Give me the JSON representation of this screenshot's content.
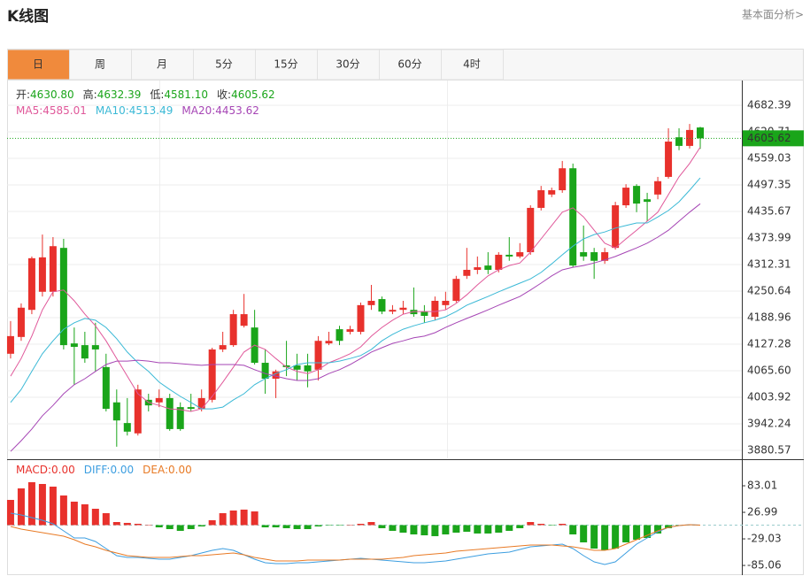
{
  "header": {
    "title": "K线图",
    "link": "基本面分析>"
  },
  "tabs": [
    {
      "label": "日",
      "active": true
    },
    {
      "label": "周",
      "active": false
    },
    {
      "label": "月",
      "active": false
    },
    {
      "label": "5分",
      "active": false
    },
    {
      "label": "15分",
      "active": false
    },
    {
      "label": "30分",
      "active": false
    },
    {
      "label": "60分",
      "active": false
    },
    {
      "label": "4时",
      "active": false
    }
  ],
  "chart_data": [
    {
      "type": "candlestick",
      "info": [
        {
          "label": "开:",
          "value": "4630.80"
        },
        {
          "label": "高:",
          "value": "4632.39"
        },
        {
          "label": "低:",
          "value": "4581.10"
        },
        {
          "label": "收:",
          "value": "4605.62"
        }
      ],
      "info_color": "#1aa51a",
      "up_color": "#e8312c",
      "down_color": "#1aa51a",
      "open": [
        4105,
        4144,
        4207,
        4249,
        4249,
        4351,
        4129,
        4125,
        4125,
        4074,
        3992,
        3944,
        3920,
        3998,
        3992,
        4002,
        3981,
        3981,
        3977,
        3998,
        4115,
        4125,
        4170,
        4166,
        4084,
        4047,
        4078,
        4078,
        4078,
        4068,
        4129,
        4162,
        4156,
        4156,
        4218,
        4232,
        4203,
        4207,
        4207,
        4203,
        4191,
        4218,
        4228,
        4286,
        4300,
        4310,
        4300,
        4335,
        4331,
        4341,
        4444,
        4475,
        4485,
        4536,
        4341,
        4341,
        4321,
        4351,
        4450,
        4495,
        4464,
        4475,
        4516,
        4608,
        4588,
        4630.8
      ],
      "high": [
        4181,
        4222,
        4331,
        4382,
        4376,
        4372,
        4166,
        4156,
        4177,
        4105,
        4022,
        4002,
        4033,
        4012,
        4022,
        4012,
        3992,
        4012,
        4022,
        4119,
        4156,
        4207,
        4244,
        4207,
        4115,
        4068,
        4135,
        4105,
        4105,
        4146,
        4156,
        4170,
        4170,
        4224,
        4265,
        4238,
        4218,
        4228,
        4259,
        4218,
        4238,
        4249,
        4286,
        4351,
        4331,
        4341,
        4341,
        4376,
        4362,
        4450,
        4495,
        4491,
        4553,
        4547,
        4403,
        4351,
        4351,
        4458,
        4499,
        4499,
        4479,
        4516,
        4629,
        4629,
        4639,
        4632.39
      ],
      "low": [
        4094,
        4135,
        4197,
        4238,
        4238,
        4115,
        4033,
        4084,
        4064,
        3971,
        3889,
        3915,
        3915,
        3971,
        3981,
        3926,
        3926,
        3971,
        3971,
        3992,
        4109,
        4121,
        4166,
        4080,
        4012,
        4002,
        4053,
        4043,
        4027,
        4043,
        4125,
        4125,
        4150,
        4150,
        4207,
        4197,
        4197,
        4197,
        4191,
        4177,
        4183,
        4207,
        4224,
        4279,
        4290,
        4290,
        4294,
        4321,
        4327,
        4335,
        4438,
        4469,
        4479,
        4306,
        4321,
        4279,
        4314,
        4347,
        4444,
        4434,
        4413,
        4464,
        4512,
        4578,
        4582,
        4581.1
      ],
      "close": [
        4146,
        4212,
        4327,
        4329,
        4355,
        4125,
        4121,
        4094,
        4115,
        3977,
        3950,
        3924,
        4022,
        3985,
        4002,
        3930,
        3930,
        3977,
        4002,
        4115,
        4125,
        4197,
        4197,
        4084,
        4047,
        4064,
        4074,
        4068,
        4064,
        4135,
        4135,
        4135,
        4162,
        4218,
        4228,
        4203,
        4207,
        4212,
        4197,
        4193,
        4228,
        4228,
        4279,
        4300,
        4306,
        4300,
        4335,
        4331,
        4341,
        4444,
        4485,
        4485,
        4536,
        4310,
        4331,
        4321,
        4341,
        4450,
        4491,
        4454,
        4458,
        4506,
        4598,
        4588,
        4625,
        4605.62
      ],
      "series": [
        {
          "name": "MA5:",
          "legend_value": "4585.01",
          "color": "#e0589a",
          "values": [
            4053,
            4094,
            4146,
            4207,
            4249,
            4253,
            4228,
            4197,
            4170,
            4135,
            4094,
            4053,
            4012,
            3992,
            3985,
            3977,
            3975,
            3971,
            3977,
            4006,
            4039,
            4074,
            4109,
            4125,
            4115,
            4094,
            4074,
            4064,
            4059,
            4068,
            4084,
            4094,
            4105,
            4121,
            4146,
            4166,
            4183,
            4197,
            4203,
            4203,
            4203,
            4207,
            4222,
            4242,
            4265,
            4286,
            4300,
            4310,
            4316,
            4341,
            4372,
            4403,
            4434,
            4444,
            4423,
            4392,
            4362,
            4351,
            4372,
            4392,
            4413,
            4434,
            4475,
            4516,
            4547,
            4585.01
          ]
        },
        {
          "name": "MA10:",
          "legend_value": "4513.49",
          "color": "#3bb9d6",
          "values": [
            3992,
            4022,
            4064,
            4105,
            4135,
            4162,
            4177,
            4187,
            4183,
            4166,
            4140,
            4109,
            4084,
            4064,
            4039,
            4022,
            4006,
            3992,
            3977,
            3977,
            3981,
            3998,
            4012,
            4033,
            4047,
            4059,
            4068,
            4080,
            4084,
            4084,
            4084,
            4088,
            4094,
            4101,
            4115,
            4135,
            4150,
            4162,
            4170,
            4177,
            4183,
            4191,
            4203,
            4218,
            4228,
            4238,
            4249,
            4259,
            4269,
            4279,
            4294,
            4314,
            4335,
            4355,
            4372,
            4382,
            4388,
            4397,
            4403,
            4409,
            4409,
            4423,
            4438,
            4458,
            4485,
            4513.49
          ]
        },
        {
          "name": "MA20:",
          "legend_value": "4453.62",
          "color": "#a646b5",
          "values": [
            3878,
            3903,
            3930,
            3961,
            3985,
            4012,
            4033,
            4047,
            4064,
            4080,
            4088,
            4088,
            4090,
            4088,
            4084,
            4084,
            4082,
            4080,
            4078,
            4080,
            4080,
            4080,
            4078,
            4068,
            4059,
            4053,
            4047,
            4043,
            4043,
            4047,
            4059,
            4068,
            4080,
            4094,
            4109,
            4119,
            4129,
            4135,
            4142,
            4146,
            4154,
            4166,
            4177,
            4187,
            4197,
            4207,
            4218,
            4228,
            4238,
            4253,
            4269,
            4286,
            4300,
            4306,
            4310,
            4316,
            4323,
            4331,
            4341,
            4351,
            4362,
            4376,
            4392,
            4413,
            4434,
            4453.62
          ]
        }
      ],
      "ylim": [
        3862.0,
        4742.0
      ],
      "yticks": [
        4682.39,
        4620.71,
        4559.03,
        4497.35,
        4435.67,
        4373.99,
        4312.31,
        4250.64,
        4188.96,
        4127.28,
        {
          "value": 4065.6,
          "label": "4065.60"
        },
        4003.92,
        3942.24,
        3880.57
      ],
      "grid": true,
      "last_price_color": "#1aa51a"
    },
    {
      "type": "macd",
      "histogram": {
        "name": "MACD:",
        "legend_value": "0.00",
        "up_color": "#e8312c",
        "down_color": "#1aa51a",
        "values": [
          53.2,
          77.5,
          90.5,
          86.8,
          81.2,
          62.5,
          49.5,
          43.9,
          34.5,
          25.2,
          6.5,
          4.7,
          2.8,
          0.9,
          -4.7,
          -8.4,
          -12.1,
          -8.4,
          -2.8,
          10.3,
          25.2,
          30.8,
          32.7,
          28.9,
          -4.7,
          -4.7,
          -6.5,
          -8.4,
          -8.4,
          -2.8,
          -0.9,
          -0.9,
          0.9,
          2.8,
          6.5,
          -6.5,
          -12.1,
          -15.9,
          -19.6,
          -21.5,
          -23.3,
          -19.6,
          -15.9,
          -14.0,
          -17.7,
          -17.7,
          -15.9,
          -12.1,
          -6.5,
          6.5,
          2.8,
          -0.9,
          2.8,
          -19.6,
          -36.4,
          -49.5,
          -53.2,
          -49.5,
          -36.4,
          -30.8,
          -27.1,
          -17.7,
          -6.5,
          -0.9,
          0.9,
          0
        ]
      },
      "series": [
        {
          "name": "DIFF:",
          "legend_value": "0.00",
          "color": "#3c9ee0",
          "values": [
            25.2,
            21.5,
            15.9,
            10.3,
            2.8,
            -12.1,
            -27.1,
            -27.1,
            -34.5,
            -49.5,
            -64.4,
            -68.1,
            -68.1,
            -70.0,
            -71.9,
            -71.9,
            -68.1,
            -64.4,
            -58.8,
            -53.2,
            -49.5,
            -53.2,
            -62.5,
            -71.9,
            -79.3,
            -81.2,
            -81.2,
            -79.3,
            -79.3,
            -77.5,
            -75.6,
            -73.7,
            -71.9,
            -70.0,
            -71.9,
            -73.7,
            -75.6,
            -77.5,
            -79.3,
            -79.3,
            -77.5,
            -75.6,
            -71.9,
            -68.1,
            -64.4,
            -60.7,
            -58.8,
            -56.9,
            -51.3,
            -45.7,
            -43.9,
            -42.0,
            -40.1,
            -49.5,
            -64.4,
            -77.5,
            -83.1,
            -77.5,
            -58.8,
            -40.1,
            -27.1,
            -14.0,
            -4.7,
            -0.9,
            0.9,
            0
          ]
        },
        {
          "name": "DEA:",
          "legend_value": "0.00",
          "color": "#e87a25",
          "values": [
            -2.8,
            -8.4,
            -12.1,
            -15.9,
            -19.6,
            -23.3,
            -30.8,
            -40.1,
            -45.7,
            -53.2,
            -58.8,
            -64.4,
            -66.3,
            -68.1,
            -68.1,
            -68.1,
            -66.3,
            -64.4,
            -64.4,
            -62.5,
            -60.7,
            -58.8,
            -62.5,
            -68.1,
            -71.9,
            -75.6,
            -75.6,
            -75.6,
            -73.7,
            -73.7,
            -73.7,
            -73.7,
            -71.9,
            -71.9,
            -71.9,
            -71.9,
            -70.0,
            -68.1,
            -64.4,
            -62.5,
            -60.7,
            -58.8,
            -55.1,
            -53.2,
            -51.3,
            -49.5,
            -47.6,
            -45.7,
            -43.9,
            -42.0,
            -42.0,
            -42.0,
            -43.9,
            -45.7,
            -49.5,
            -53.2,
            -53.2,
            -49.5,
            -40.1,
            -30.8,
            -21.5,
            -12.1,
            -4.7,
            -0.9,
            0.9,
            0
          ]
        }
      ],
      "ylim": [
        -105.5,
        137.2
      ],
      "yticks": [
        83.01,
        26.99,
        -29.03,
        -85.06
      ],
      "grid": true
    }
  ]
}
